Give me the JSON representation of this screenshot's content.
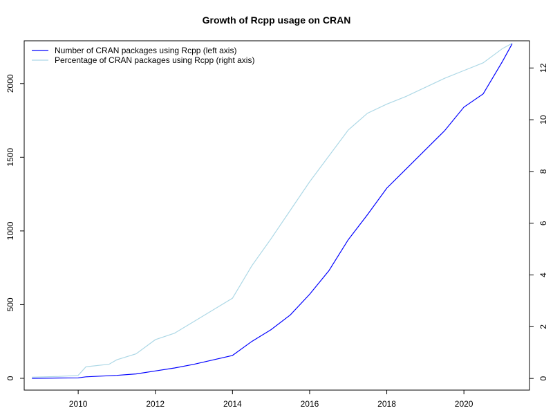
{
  "chart_data": {
    "type": "line",
    "title": "Growth of Rcpp usage on CRAN",
    "xlabel": "",
    "ylabel": "",
    "y2label": "",
    "xlim": [
      2008.6,
      2021.7
    ],
    "ylim": [
      -80,
      2290
    ],
    "y2lim": [
      -0.45,
      13.05
    ],
    "x_ticks": [
      2010,
      2012,
      2014,
      2016,
      2018,
      2020
    ],
    "y_ticks": [
      0,
      500,
      1000,
      1500,
      2000
    ],
    "y2_ticks": [
      0,
      2,
      4,
      6,
      8,
      10,
      12
    ],
    "grid": false,
    "legend": {
      "position": "top-left"
    },
    "series": [
      {
        "name": "Number of CRAN packages using Rcpp (left axis)",
        "axis": "left",
        "color": "#0000ff",
        "x": [
          2008.8,
          2009.5,
          2010.0,
          2010.2,
          2011.0,
          2011.5,
          2012.0,
          2012.5,
          2013.0,
          2013.5,
          2014.0,
          2014.5,
          2015.0,
          2015.5,
          2016.0,
          2016.5,
          2017.0,
          2017.5,
          2018.0,
          2018.5,
          2019.0,
          2019.5,
          2020.0,
          2020.5,
          2021.0,
          2021.25
        ],
        "y": [
          0,
          2,
          3,
          10,
          20,
          30,
          50,
          70,
          95,
          125,
          155,
          250,
          330,
          430,
          570,
          730,
          940,
          1110,
          1290,
          1420,
          1550,
          1680,
          1840,
          1930,
          2150,
          2270
        ]
      },
      {
        "name": "Percentage of CRAN packages using Rcpp (right axis)",
        "axis": "right",
        "color": "#add8e6",
        "x": [
          2008.8,
          2009.5,
          2010.0,
          2010.2,
          2010.8,
          2011.0,
          2011.5,
          2012.0,
          2012.5,
          2013.0,
          2013.5,
          2014.0,
          2014.5,
          2015.0,
          2015.5,
          2016.0,
          2016.5,
          2017.0,
          2017.5,
          2018.0,
          2018.5,
          2019.0,
          2019.5,
          2020.0,
          2020.5,
          2021.0,
          2021.25
        ],
        "y": [
          0.05,
          0.08,
          0.12,
          0.45,
          0.55,
          0.72,
          0.95,
          1.5,
          1.75,
          2.2,
          2.65,
          3.1,
          4.35,
          5.4,
          6.5,
          7.6,
          8.6,
          9.6,
          10.25,
          10.6,
          10.9,
          11.25,
          11.6,
          11.9,
          12.2,
          12.75,
          12.95
        ]
      }
    ]
  }
}
